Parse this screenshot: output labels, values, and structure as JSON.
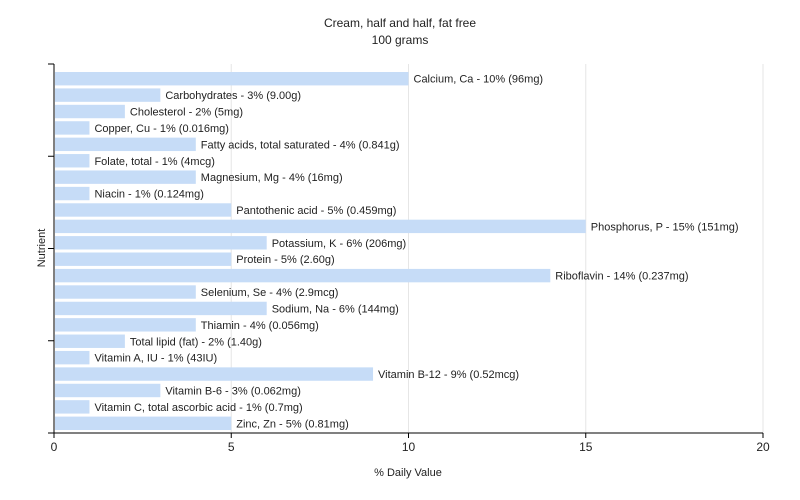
{
  "chart_data": {
    "type": "bar",
    "orientation": "horizontal",
    "title": "Cream, half and half, fat free",
    "subtitle": "100 grams",
    "xlabel": "% Daily Value",
    "ylabel": "Nutrient",
    "xlim": [
      0,
      20
    ],
    "xticks": [
      0,
      5,
      10,
      15,
      20
    ],
    "grid": true,
    "colors": {
      "bar": "#c6dcf7",
      "grid": "#e6e6e6",
      "axis": "#000000"
    },
    "categories": [
      "Calcium, Ca",
      "Carbohydrates",
      "Cholesterol",
      "Copper, Cu",
      "Fatty acids, total saturated",
      "Folate, total",
      "Magnesium, Mg",
      "Niacin",
      "Pantothenic acid",
      "Phosphorus, P",
      "Potassium, K",
      "Protein",
      "Riboflavin",
      "Selenium, Se",
      "Sodium, Na",
      "Thiamin",
      "Total lipid (fat)",
      "Vitamin A, IU",
      "Vitamin B-12",
      "Vitamin B-6",
      "Vitamin C, total ascorbic acid",
      "Zinc, Zn"
    ],
    "values": [
      10,
      3,
      2,
      1,
      4,
      1,
      4,
      1,
      5,
      15,
      6,
      5,
      14,
      4,
      6,
      4,
      2,
      1,
      9,
      3,
      1,
      5
    ],
    "labels": [
      "Calcium, Ca - 10% (96mg)",
      "Carbohydrates - 3% (9.00g)",
      "Cholesterol - 2% (5mg)",
      "Copper, Cu - 1% (0.016mg)",
      "Fatty acids, total saturated - 4% (0.841g)",
      "Folate, total - 1% (4mcg)",
      "Magnesium, Mg - 4% (16mg)",
      "Niacin - 1% (0.124mg)",
      "Pantothenic acid - 5% (0.459mg)",
      "Phosphorus, P - 15% (151mg)",
      "Potassium, K - 6% (206mg)",
      "Protein - 5% (2.60g)",
      "Riboflavin - 14% (0.237mg)",
      "Selenium, Se - 4% (2.9mcg)",
      "Sodium, Na - 6% (144mg)",
      "Thiamin - 4% (0.056mg)",
      "Total lipid (fat) - 2% (1.40g)",
      "Vitamin A, IU - 1% (43IU)",
      "Vitamin B-12 - 9% (0.52mcg)",
      "Vitamin B-6 - 3% (0.062mg)",
      "Vitamin C, total ascorbic acid - 1% (0.7mg)",
      "Zinc, Zn - 5% (0.81mg)"
    ]
  }
}
